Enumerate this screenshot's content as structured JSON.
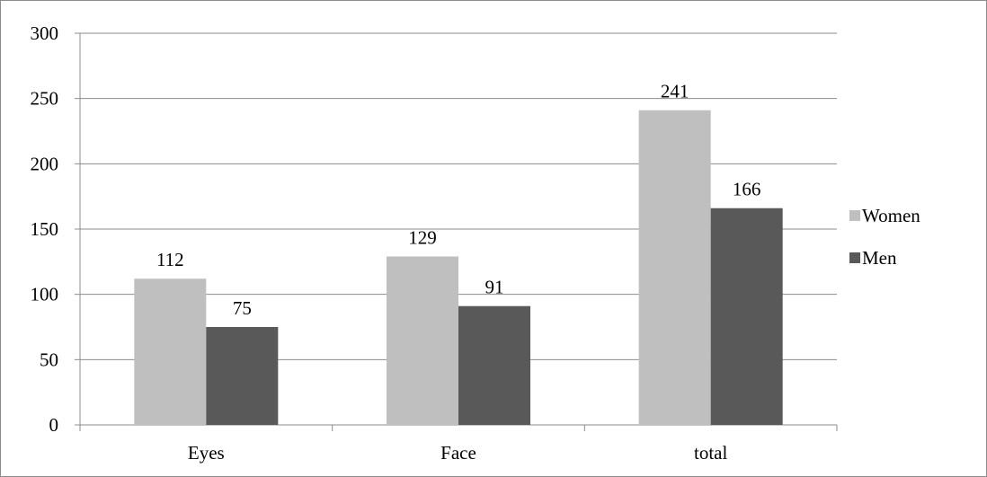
{
  "chart_data": {
    "type": "bar",
    "categories": [
      "Eyes",
      "Face",
      "total"
    ],
    "series": [
      {
        "name": "Women",
        "values": [
          112,
          129,
          241
        ],
        "color": "#bfbfbf"
      },
      {
        "name": "Men",
        "values": [
          75,
          91,
          166
        ],
        "color": "#595959"
      }
    ],
    "ylim": [
      0,
      300
    ],
    "yticks": [
      0,
      50,
      100,
      150,
      200,
      250,
      300
    ],
    "grid": true,
    "legend_position": "right",
    "data_labels": true
  }
}
